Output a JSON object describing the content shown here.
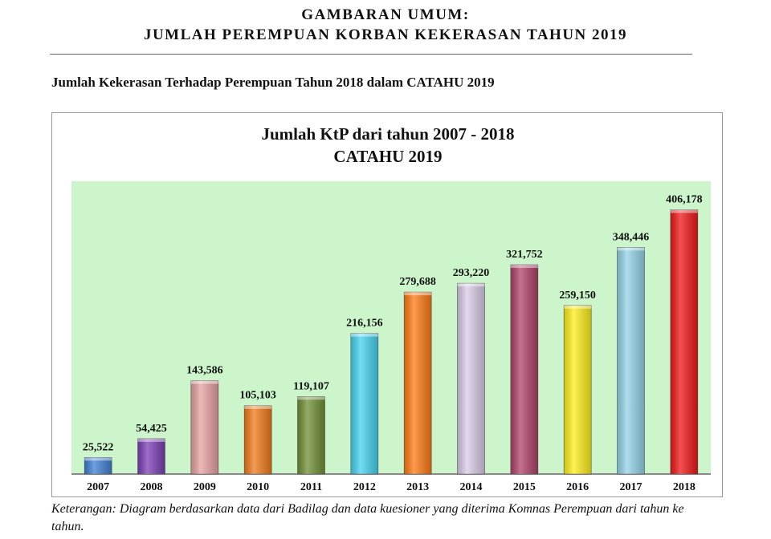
{
  "header": {
    "line1": "GAMBARAN UMUM:",
    "line2": "JUMLAH PEREMPUAN KORBAN KEKERASAN TAHUN 2019"
  },
  "subtitle": "Jumlah Kekerasan Terhadap Perempuan Tahun 2018 dalam CATAHU 2019",
  "caption": "Keterangan: Diagram berdasarkan data dari Badilag dan data kuesioner yang diterima Komnas Perempuan dari tahun ke tahun.",
  "chart_data": {
    "type": "bar",
    "title": "Jumlah KtP dari tahun 2007 - 2018",
    "subtitle": "CATAHU 2019",
    "categories": [
      "2007",
      "2008",
      "2009",
      "2010",
      "2011",
      "2012",
      "2013",
      "2014",
      "2015",
      "2016",
      "2017",
      "2018"
    ],
    "values": [
      25522,
      54425,
      143586,
      105103,
      119107,
      216156,
      279688,
      293220,
      321752,
      259150,
      348446,
      406178
    ],
    "value_labels": [
      "25,522",
      "54,425",
      "143,586",
      "105,103",
      "119,107",
      "216,156",
      "279,688",
      "293,220",
      "321,752",
      "259,150",
      "348,446",
      "406,178"
    ],
    "colors": [
      "#3f7fd3",
      "#7b3fb5",
      "#e8a1a1",
      "#f07a1a",
      "#6f8f34",
      "#45d3ef",
      "#ff7a14",
      "#d9cbe6",
      "#b0426a",
      "#ffee1a",
      "#93d3e6",
      "#f01818"
    ],
    "plot_background": "#ccf5cc",
    "ylim": [
      0,
      450000
    ],
    "xlabel": "",
    "ylabel": "",
    "grid": false,
    "legend": "none"
  }
}
